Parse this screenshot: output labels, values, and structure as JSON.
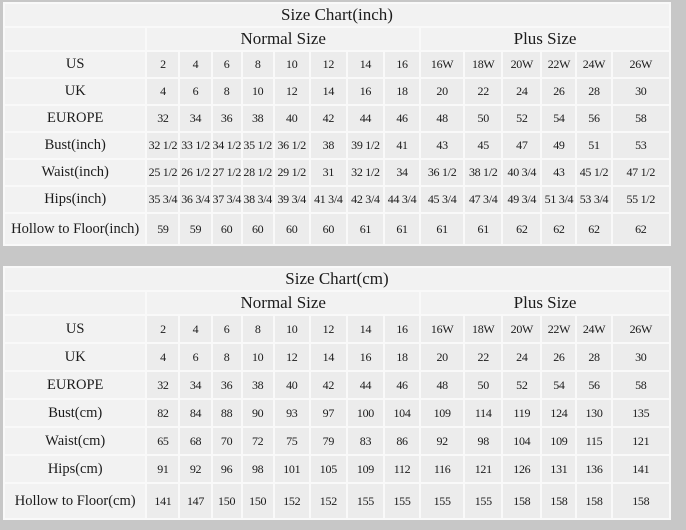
{
  "page_background": "#c7c7c7",
  "colors": {
    "cell_bg": "#ececec",
    "label_cell_bg": "#f2f2f2",
    "gap_color": "#f9f9f9",
    "text_color": "#1b1b1b"
  },
  "chart_data": [
    {
      "type": "table",
      "title": "Size Chart(inch)",
      "group_headers": [
        {
          "label": "Normal Size",
          "span": 8
        },
        {
          "label": "Plus Size",
          "span": 6
        }
      ],
      "rows": [
        {
          "label": "US",
          "values": [
            "2",
            "4",
            "6",
            "8",
            "10",
            "12",
            "14",
            "16",
            "16W",
            "18W",
            "20W",
            "22W",
            "24W",
            "26W"
          ]
        },
        {
          "label": "UK",
          "values": [
            "4",
            "6",
            "8",
            "10",
            "12",
            "14",
            "16",
            "18",
            "20",
            "22",
            "24",
            "26",
            "28",
            "30"
          ]
        },
        {
          "label": "EUROPE",
          "values": [
            "32",
            "34",
            "36",
            "38",
            "40",
            "42",
            "44",
            "46",
            "48",
            "50",
            "52",
            "54",
            "56",
            "58"
          ]
        },
        {
          "label": "Bust(inch)",
          "values": [
            "32 1/2",
            "33 1/2",
            "34 1/2",
            "35 1/2",
            "36 1/2",
            "38",
            "39 1/2",
            "41",
            "43",
            "45",
            "47",
            "49",
            "51",
            "53"
          ]
        },
        {
          "label": "Waist(inch)",
          "values": [
            "25 1/2",
            "26 1/2",
            "27 1/2",
            "28 1/2",
            "29 1/2",
            "31",
            "32 1/2",
            "34",
            "36 1/2",
            "38 1/2",
            "40 3/4",
            "43",
            "45 1/2",
            "47 1/2"
          ]
        },
        {
          "label": "Hips(inch)",
          "values": [
            "35 3/4",
            "36 3/4",
            "37 3/4",
            "38 3/4",
            "39 3/4",
            "41 3/4",
            "42 3/4",
            "44 3/4",
            "45 3/4",
            "47 3/4",
            "49 3/4",
            "51 3/4",
            "53 3/4",
            "55 1/2"
          ]
        },
        {
          "label": "Hollow to Floor(inch)",
          "values": [
            "59",
            "59",
            "60",
            "60",
            "60",
            "60",
            "61",
            "61",
            "61",
            "61",
            "62",
            "62",
            "62",
            "62"
          ]
        }
      ]
    },
    {
      "type": "table",
      "title": "Size Chart(cm)",
      "group_headers": [
        {
          "label": "Normal Size",
          "span": 8
        },
        {
          "label": "Plus Size",
          "span": 6
        }
      ],
      "rows": [
        {
          "label": "US",
          "values": [
            "2",
            "4",
            "6",
            "8",
            "10",
            "12",
            "14",
            "16",
            "16W",
            "18W",
            "20W",
            "22W",
            "24W",
            "26W"
          ]
        },
        {
          "label": "UK",
          "values": [
            "4",
            "6",
            "8",
            "10",
            "12",
            "14",
            "16",
            "18",
            "20",
            "22",
            "24",
            "26",
            "28",
            "30"
          ]
        },
        {
          "label": "EUROPE",
          "values": [
            "32",
            "34",
            "36",
            "38",
            "40",
            "42",
            "44",
            "46",
            "48",
            "50",
            "52",
            "54",
            "56",
            "58"
          ]
        },
        {
          "label": "Bust(cm)",
          "values": [
            "82",
            "84",
            "88",
            "90",
            "93",
            "97",
            "100",
            "104",
            "109",
            "114",
            "119",
            "124",
            "130",
            "135"
          ]
        },
        {
          "label": "Waist(cm)",
          "values": [
            "65",
            "68",
            "70",
            "72",
            "75",
            "79",
            "83",
            "86",
            "92",
            "98",
            "104",
            "109",
            "115",
            "121"
          ]
        },
        {
          "label": "Hips(cm)",
          "values": [
            "91",
            "92",
            "96",
            "98",
            "101",
            "105",
            "109",
            "112",
            "116",
            "121",
            "126",
            "131",
            "136",
            "141"
          ]
        },
        {
          "label": "Hollow to Floor(cm)",
          "values": [
            "141",
            "147",
            "150",
            "150",
            "152",
            "152",
            "155",
            "155",
            "155",
            "155",
            "158",
            "158",
            "158",
            "158"
          ]
        }
      ]
    }
  ]
}
